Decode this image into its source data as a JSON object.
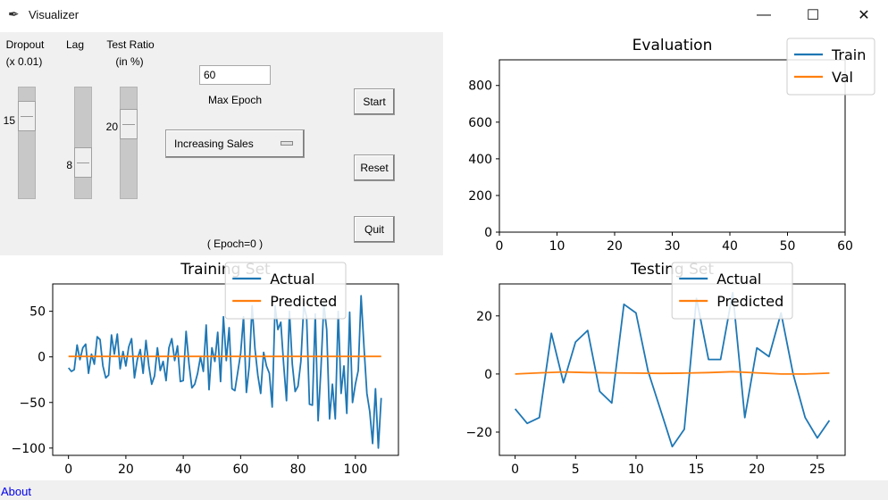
{
  "window": {
    "title": "Visualizer",
    "minimize_glyph": "—",
    "maximize_glyph": "☐",
    "close_glyph": "✕",
    "app_icon": "feather-icon"
  },
  "controls": {
    "dropout": {
      "label_line1": "Dropout",
      "label_line2": "(x 0.01)",
      "value": "15",
      "level": 0.15
    },
    "lag": {
      "label": "Lag",
      "value": "8",
      "level": 0.6
    },
    "test_ratio": {
      "label_line1": "Test Ratio",
      "label_line2": "(in %)",
      "value": "20",
      "level": 0.2
    },
    "max_epoch": {
      "value": "60",
      "label": "Max Epoch"
    },
    "dataset": {
      "selected": "Increasing Sales"
    },
    "start_label": "Start",
    "reset_label": "Reset",
    "quit_label": "Quit",
    "epoch_status": "( Epoch=0 )"
  },
  "footer": {
    "about_label": "About"
  },
  "chart_data": [
    {
      "id": "evaluation",
      "type": "line",
      "title": "Evaluation",
      "xlabel": "",
      "ylabel": "",
      "xlim": [
        0,
        60
      ],
      "ylim": [
        0,
        940
      ],
      "xticks": [
        0,
        10,
        20,
        30,
        40,
        50,
        60
      ],
      "yticks": [
        0,
        200,
        400,
        600,
        800
      ],
      "legend": "top-right",
      "series": [
        {
          "name": "Train",
          "color": "#1f77b4",
          "x": [],
          "y": []
        },
        {
          "name": "Val",
          "color": "#ff7f0e",
          "x": [],
          "y": []
        }
      ]
    },
    {
      "id": "training",
      "type": "line",
      "title": "Training Set",
      "xlabel": "",
      "ylabel": "",
      "xlim": [
        -5.5,
        115
      ],
      "ylim": [
        -108,
        80
      ],
      "xticks": [
        0,
        20,
        40,
        60,
        80,
        100
      ],
      "yticks": [
        -100,
        -50,
        0,
        50
      ],
      "legend": "top-right",
      "series": [
        {
          "name": "Actual",
          "color": "#1f77b4",
          "x": [
            0,
            1,
            2,
            3,
            4,
            5,
            6,
            7,
            8,
            9,
            10,
            11,
            12,
            13,
            14,
            15,
            16,
            17,
            18,
            19,
            20,
            21,
            22,
            23,
            24,
            25,
            26,
            27,
            28,
            29,
            30,
            31,
            32,
            33,
            34,
            35,
            36,
            37,
            38,
            39,
            40,
            41,
            42,
            43,
            44,
            45,
            46,
            47,
            48,
            49,
            50,
            51,
            52,
            53,
            54,
            55,
            56,
            57,
            58,
            59,
            60,
            61,
            62,
            63,
            64,
            65,
            66,
            67,
            68,
            69,
            70,
            71,
            72,
            73,
            74,
            75,
            76,
            77,
            78,
            79,
            80,
            81,
            82,
            83,
            84,
            85,
            86,
            87,
            88,
            89,
            90,
            91,
            92,
            93,
            94,
            95,
            96,
            97,
            98,
            99,
            100,
            101,
            102,
            103,
            104,
            105,
            106,
            107,
            108,
            109
          ],
          "y": [
            -12,
            -16,
            -14,
            13,
            -3,
            10,
            14,
            -18,
            3,
            -8,
            22,
            19,
            -10,
            -23,
            -20,
            24,
            3,
            25,
            -13,
            6,
            -10,
            11,
            20,
            -23,
            -3,
            8,
            -18,
            18,
            -10,
            -30,
            -21,
            10,
            -15,
            -5,
            -26,
            10,
            20,
            -4,
            12,
            -27,
            -26,
            28,
            -8,
            -34,
            -30,
            -18,
            0,
            -16,
            35,
            -36,
            10,
            -5,
            27,
            -27,
            44,
            -4,
            32,
            -35,
            -37,
            -17,
            4,
            44,
            -39,
            -10,
            56,
            9,
            -20,
            -40,
            5,
            -10,
            -18,
            -55,
            56,
            30,
            38,
            -8,
            -48,
            50,
            -8,
            -38,
            -32,
            -5,
            56,
            44,
            -52,
            -53,
            47,
            -70,
            -12,
            58,
            30,
            -68,
            -30,
            -68,
            50,
            -40,
            -10,
            -62,
            49,
            -50,
            -30,
            -15,
            67,
            10,
            -40,
            -60,
            -95,
            -35,
            -100,
            -45
          ],
          "y_note": "approximate reading of a noisy series"
        },
        {
          "name": "Predicted",
          "color": "#ff7f0e",
          "x": [
            0,
            109
          ],
          "y": [
            0.5,
            0.5
          ]
        }
      ]
    },
    {
      "id": "testing",
      "type": "line",
      "title": "Testing Set",
      "xlabel": "",
      "ylabel": "",
      "xlim": [
        -1.3,
        27.3
      ],
      "ylim": [
        -28,
        31
      ],
      "xticks": [
        0,
        5,
        10,
        15,
        20,
        25
      ],
      "yticks": [
        -20,
        0,
        20
      ],
      "legend": "top-right",
      "series": [
        {
          "name": "Actual",
          "color": "#1f77b4",
          "x": [
            0,
            1,
            2,
            3,
            4,
            5,
            6,
            7,
            8,
            9,
            10,
            11,
            12,
            13,
            14,
            15,
            16,
            17,
            18,
            19,
            20,
            21,
            22,
            23,
            24,
            25,
            26
          ],
          "y": [
            -12,
            -17,
            -15,
            14,
            -3,
            11,
            15,
            -6,
            -10,
            24,
            21,
            1,
            -12,
            -25,
            -19,
            26,
            5,
            5,
            28,
            -15,
            9,
            6,
            21,
            0,
            -15,
            -22,
            -16
          ]
        },
        {
          "name": "Predicted",
          "color": "#ff7f0e",
          "x": [
            0,
            2,
            4,
            6,
            8,
            10,
            12,
            14,
            16,
            18,
            20,
            22,
            24,
            26
          ],
          "y": [
            0,
            0.4,
            0.7,
            0.5,
            0.4,
            0.3,
            0.2,
            0.3,
            0.5,
            0.8,
            0.4,
            0,
            0,
            0.3
          ]
        }
      ]
    }
  ]
}
